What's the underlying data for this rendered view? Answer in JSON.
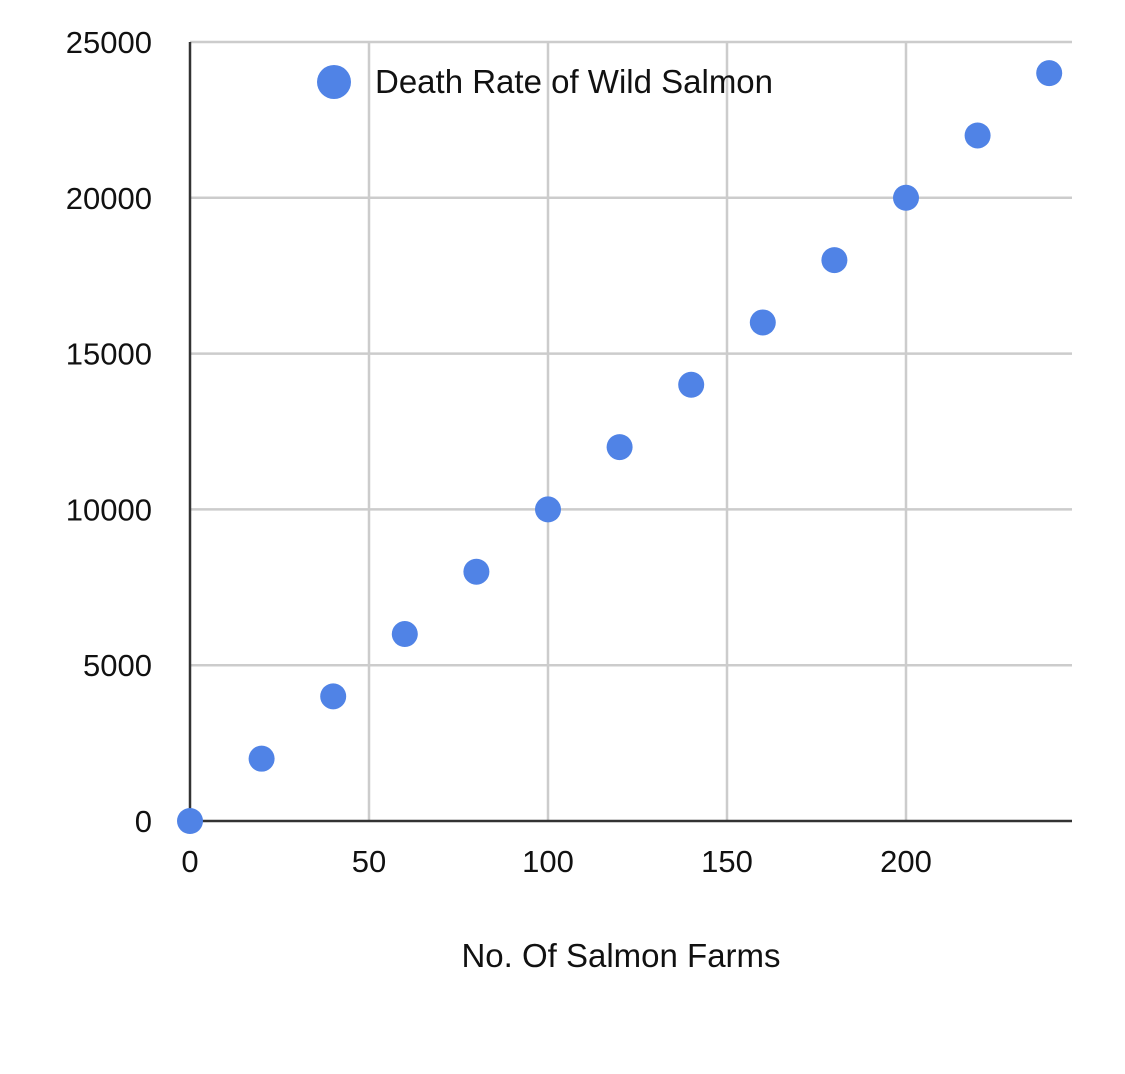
{
  "colors": {
    "series": "#5083e6",
    "grid": "#cccccc",
    "axis": "#333333"
  },
  "chart_data": {
    "type": "scatter",
    "title": "",
    "xlabel": "No. Of Salmon Farms",
    "ylabel": "",
    "xlim": [
      0,
      245
    ],
    "ylim": [
      0,
      25000
    ],
    "xticks": [
      0,
      50,
      100,
      150,
      200
    ],
    "yticks": [
      0,
      5000,
      10000,
      15000,
      20000,
      25000
    ],
    "xtick_labels": [
      "0",
      "50",
      "100",
      "150",
      "200"
    ],
    "ytick_labels": [
      "0",
      "5000",
      "10000",
      "15000",
      "20000",
      "25000"
    ],
    "grid": true,
    "legend": {
      "position": "top-left",
      "entries": [
        "Death Rate of Wild Salmon"
      ]
    },
    "series": [
      {
        "name": "Death Rate of Wild Salmon",
        "x": [
          0,
          20,
          40,
          60,
          80,
          100,
          120,
          140,
          160,
          180,
          200,
          220,
          240
        ],
        "y": [
          0,
          2000,
          4000,
          6000,
          8000,
          10000,
          12000,
          14000,
          16000,
          18000,
          20000,
          22000,
          24000
        ]
      }
    ]
  }
}
